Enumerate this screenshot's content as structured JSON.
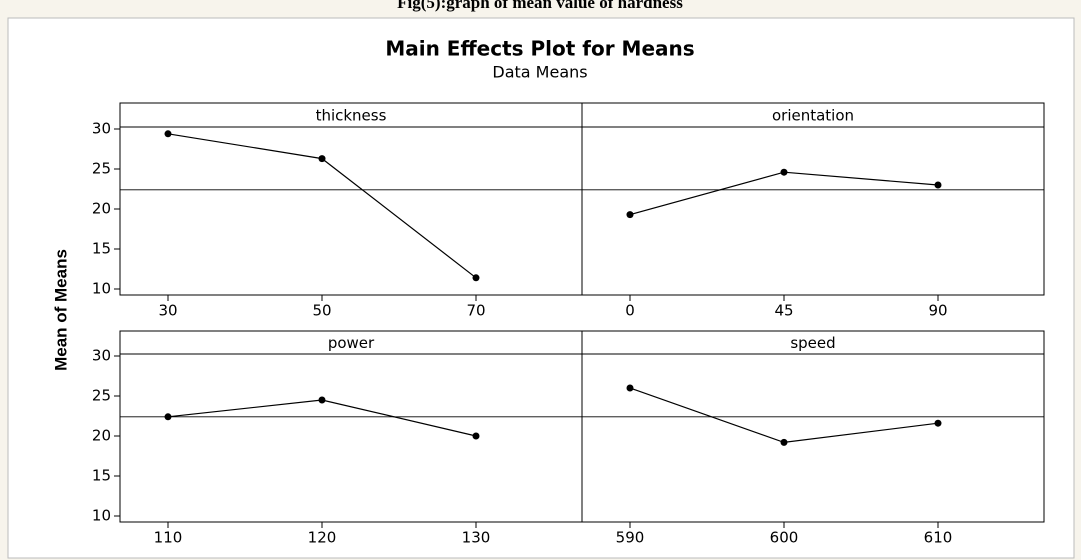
{
  "chart_data": {
    "type": "line",
    "caption": "Fig(5):graph of mean value of hardness",
    "title": "Main Effects Plot for Means",
    "subtitle": "Data Means",
    "ylabel": "Mean of Means",
    "ylim": [
      9.25,
      30.25
    ],
    "yticks": [
      10,
      15,
      20,
      25,
      30
    ],
    "mean_line": 22.4,
    "color": "#000000",
    "panels": [
      {
        "name": "thickness",
        "categories": [
          "30",
          "50",
          "70"
        ],
        "values": [
          29.4,
          26.3,
          11.4
        ]
      },
      {
        "name": "orientation",
        "categories": [
          "0",
          "45",
          "90"
        ],
        "values": [
          19.3,
          24.6,
          23.0
        ]
      },
      {
        "name": "power",
        "categories": [
          "110",
          "120",
          "130"
        ],
        "values": [
          22.4,
          24.5,
          20.0
        ]
      },
      {
        "name": "speed",
        "categories": [
          "590",
          "600",
          "610"
        ],
        "values": [
          26.0,
          19.2,
          21.6
        ]
      }
    ]
  }
}
